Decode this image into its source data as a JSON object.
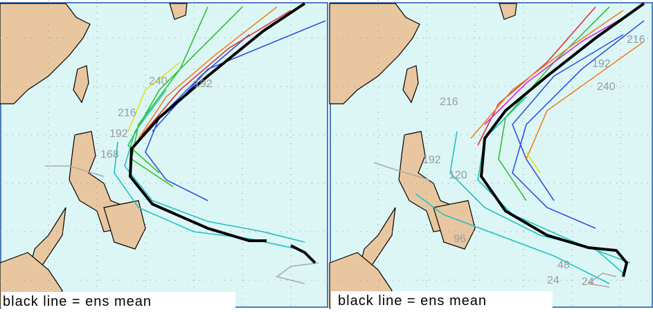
{
  "panels": [
    {
      "caption": "black line = ens mean",
      "labels": [
        "240",
        "192",
        "216",
        "192",
        "168"
      ]
    },
    {
      "caption": "black line = ens mean",
      "labels": [
        "216",
        "192",
        "240",
        "216",
        "192",
        "120",
        "96",
        "48",
        "24",
        "24"
      ]
    }
  ]
}
